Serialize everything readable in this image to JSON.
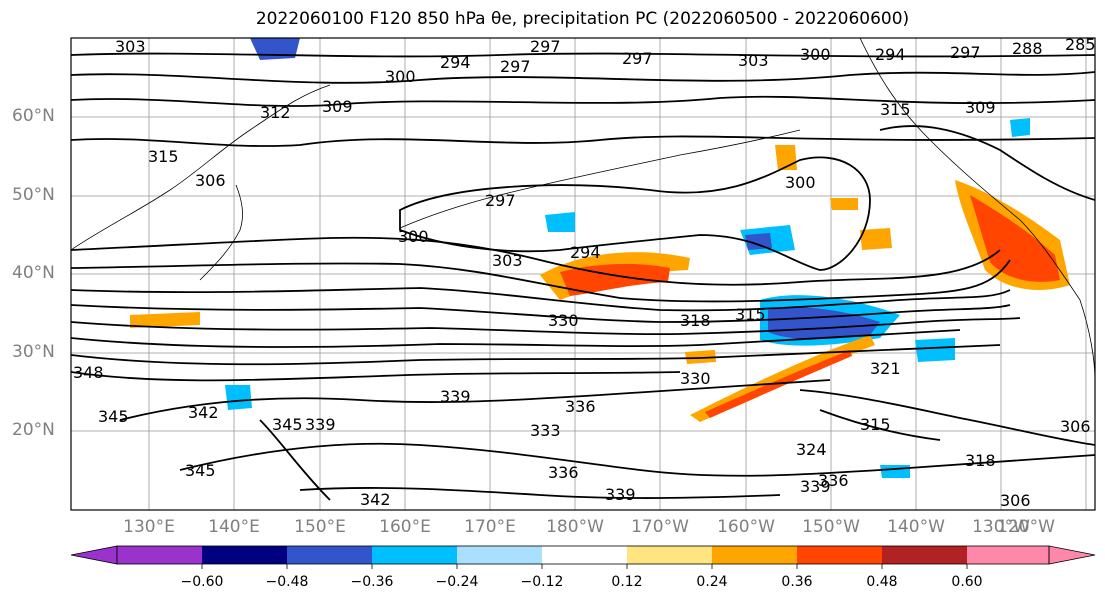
{
  "title": "2022060100 F120 850 hPa θe, precipitation PC (2022060500 - 2022060600)",
  "latitude_labels": [
    "60°N",
    "50°N",
    "40°N",
    "30°N",
    "20°N"
  ],
  "longitude_labels": [
    "130°E",
    "140°E",
    "150°E",
    "160°E",
    "170°E",
    "180°W",
    "170°W",
    "160°W",
    "150°W",
    "140°W",
    "130°W",
    "120°W"
  ],
  "contour_labels": [
    "303",
    "300",
    "294",
    "297",
    "297",
    "297",
    "303",
    "300",
    "294",
    "297",
    "288",
    "285",
    "312",
    "309",
    "315",
    "309",
    "315",
    "306",
    "297",
    "300",
    "300",
    "294",
    "303",
    "330",
    "318",
    "315",
    "321",
    "330",
    "348",
    "345",
    "342",
    "345",
    "339",
    "339",
    "336",
    "333",
    "336",
    "339",
    "315",
    "324",
    "318",
    "339",
    "336",
    "342",
    "345",
    "306",
    "306"
  ],
  "colorbar": {
    "ticks": [
      "−0.60",
      "−0.48",
      "−0.36",
      "−0.24",
      "−0.12",
      "0.12",
      "0.24",
      "0.36",
      "0.48",
      "0.60"
    ],
    "colors": [
      "#9933cc",
      "#000080",
      "#3355cc",
      "#00bfff",
      "#aadfff",
      "#ffffff",
      "#ffe57f",
      "#ffa500",
      "#ff4500",
      "#b22222",
      "#ff88aa"
    ]
  }
}
